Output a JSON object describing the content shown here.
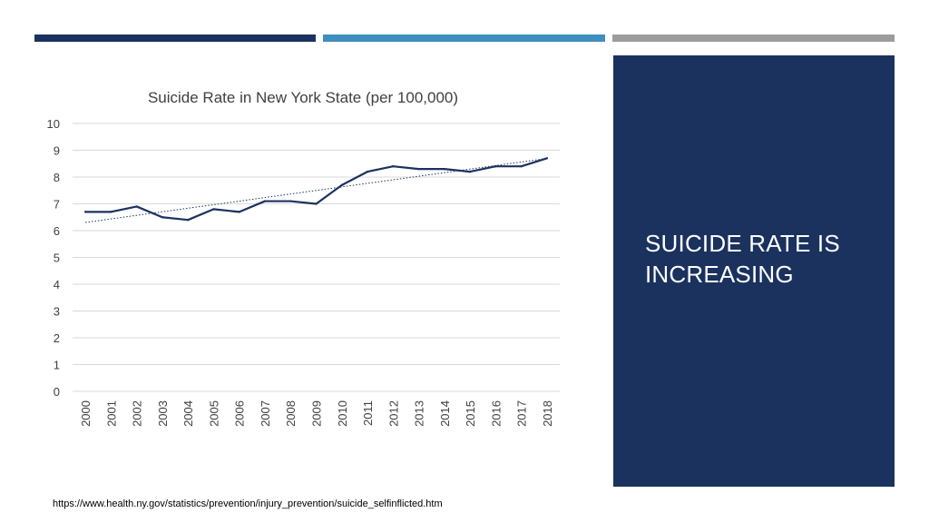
{
  "colors": {
    "navy": "#1b325f",
    "blue": "#3e8ebf",
    "gray": "#9c9c9c",
    "line": "#1b325f",
    "grid": "#d9d9d9"
  },
  "slide": {
    "panel_title": "SUICIDE RATE IS INCREASING",
    "source": "https://www.health.ny.gov/statistics/prevention/injury_prevention/suicide_selfinflicted.htm"
  },
  "chart_data": {
    "type": "line",
    "title": "Suicide Rate in New York State (per 100,000)",
    "x": [
      "2000",
      "2001",
      "2002",
      "2003",
      "2004",
      "2005",
      "2006",
      "2007",
      "2008",
      "2009",
      "2010",
      "2011",
      "2012",
      "2013",
      "2014",
      "2015",
      "2016",
      "2017",
      "2018"
    ],
    "series": [
      {
        "values": [
          6.7,
          6.7,
          6.9,
          6.5,
          6.4,
          6.8,
          6.7,
          7.1,
          7.1,
          7.0,
          7.7,
          8.2,
          8.4,
          8.3,
          8.3,
          8.2,
          8.4,
          8.4,
          8.7
        ]
      }
    ],
    "trendline": {
      "style": "dotted",
      "type": "linear"
    },
    "yticks": [
      0,
      1,
      2,
      3,
      4,
      5,
      6,
      7,
      8,
      9,
      10
    ],
    "ylim": [
      0,
      10
    ],
    "grid": true,
    "legend": "none"
  }
}
